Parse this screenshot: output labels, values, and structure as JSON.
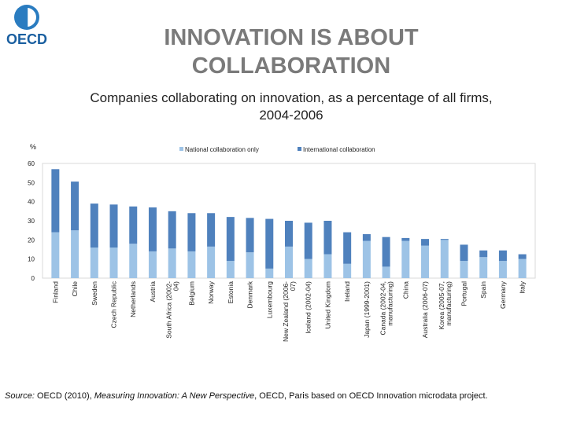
{
  "header": {
    "logo_text": "OECD",
    "title_line1": "INNOVATION IS ABOUT",
    "title_line2": "COLLABORATION",
    "subtitle_line1": "Companies collaborating on innovation, as a percentage of all firms,",
    "subtitle_line2": "2004-2006"
  },
  "colors": {
    "national": "#9dc3e6",
    "international": "#4f81bd"
  },
  "chart_data": {
    "type": "bar",
    "stacked": true,
    "ylabel": "%",
    "ylim": [
      0,
      60
    ],
    "yticks": [
      0,
      10,
      20,
      30,
      40,
      50,
      60
    ],
    "grid": false,
    "legend": "top",
    "categories": [
      "Finland",
      "Chile",
      "Sweden",
      "Czech Republic",
      "Netherlands",
      "Austria",
      "South Africa (2002-04)",
      "Belgium",
      "Norway",
      "Estonia",
      "Denmark",
      "Luxembourg",
      "New Zealand (2006-07)",
      "Iceland (2002-04)",
      "United Kingdom",
      "Ireland",
      "Japan (1999-2001)",
      "Canada (2002-04, manufacturing)",
      "China",
      "Australia (2006-07)",
      "Korea (2005-07, manufacturing)",
      "Portugal",
      "Spain",
      "Germany",
      "Italy"
    ],
    "labels": [
      [
        "Finland"
      ],
      [
        "Chile"
      ],
      [
        "Sweden"
      ],
      [
        "Czech Republic"
      ],
      [
        "Netherlands"
      ],
      [
        "Austria"
      ],
      [
        "South Africa (2002-",
        "04)"
      ],
      [
        "Belgium"
      ],
      [
        "Norway"
      ],
      [
        "Estonia"
      ],
      [
        "Denmark"
      ],
      [
        "Luxembourg"
      ],
      [
        "New Zealand (2006-",
        "07)"
      ],
      [
        "Iceland (2002-04)"
      ],
      [
        "United Kingdom"
      ],
      [
        "Ireland"
      ],
      [
        "Japan (1999-2001)"
      ],
      [
        "Canada (2002-04,",
        "manufacturing)"
      ],
      [
        "China"
      ],
      [
        "Australia (2006-07)"
      ],
      [
        "Korea (2005-07,",
        "manufacturing)"
      ],
      [
        "Portugal"
      ],
      [
        "Spain"
      ],
      [
        "Germany"
      ],
      [
        "Italy"
      ]
    ],
    "series": [
      {
        "name": "National collaboration only",
        "values": [
          24,
          25,
          16,
          16,
          18,
          14,
          15.5,
          14,
          16.5,
          9,
          13.5,
          5,
          16.5,
          10,
          12.5,
          7.5,
          19.5,
          6,
          19.5,
          17,
          20,
          9,
          11,
          9,
          10
        ]
      },
      {
        "name": "International collaboration",
        "values": [
          33,
          25.5,
          23,
          22.5,
          19.5,
          23,
          19.5,
          20,
          17.5,
          23,
          18,
          26,
          13.5,
          19,
          17.5,
          16.5,
          3.5,
          15.5,
          1.5,
          3.5,
          0.5,
          8.5,
          3.5,
          5.5,
          2.5
        ]
      }
    ]
  },
  "source": {
    "label": "Source:",
    "text1": " OECD (2010), ",
    "title": "Measuring Innovation: A New Perspective",
    "text2": ", OECD, Paris based on OECD Innovation microdata project."
  }
}
